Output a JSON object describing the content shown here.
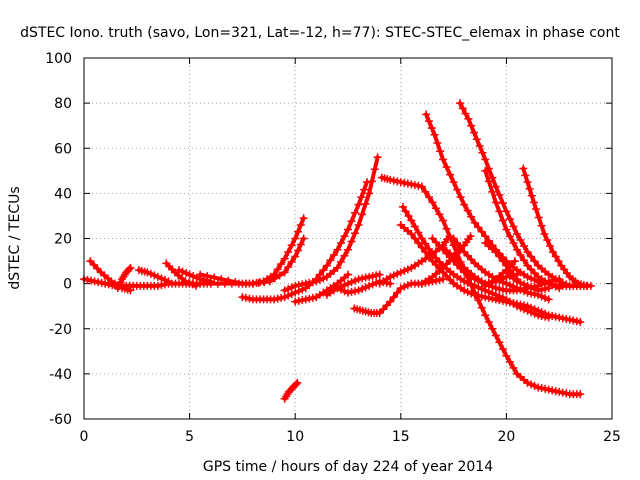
{
  "chart_data": {
    "type": "scatter",
    "title": "dSTEC Iono. truth (savo, Lon=321, Lat=-12, h=77): STEC-STEC_elemax in phase cont",
    "xlabel": "GPS time / hours of day 224 of year 2014",
    "ylabel": "dSTEC / TECUs",
    "xlim": [
      0,
      25
    ],
    "ylim": [
      -60,
      100
    ],
    "xticks": [
      0,
      5,
      10,
      15,
      20,
      25
    ],
    "yticks": [
      -60,
      -40,
      -20,
      0,
      20,
      40,
      60,
      80,
      100
    ],
    "grid": true,
    "marker_color": "#ff0000",
    "series": [
      {
        "x": [
          0.0,
          0.5,
          1.0,
          1.5,
          2.0,
          2.5,
          3.0,
          3.5,
          4.0,
          4.5,
          5.0,
          5.5,
          6.0
        ],
        "y": [
          2,
          1,
          0,
          -1,
          -1,
          -1,
          -1,
          -1,
          0,
          0,
          0,
          0,
          0
        ]
      },
      {
        "x": [
          0.3,
          0.8,
          1.3,
          1.8,
          2.2
        ],
        "y": [
          10,
          5,
          1,
          -2,
          -3
        ]
      },
      {
        "x": [
          1.6,
          1.8,
          2.0,
          2.2
        ],
        "y": [
          -2,
          2,
          5,
          7
        ]
      },
      {
        "x": [
          2.6,
          3.0,
          3.5,
          4.0
        ],
        "y": [
          6,
          5,
          3,
          1
        ]
      },
      {
        "x": [
          3.9,
          4.3,
          4.8,
          5.3
        ],
        "y": [
          9,
          5,
          1,
          -1
        ]
      },
      {
        "x": [
          4.5,
          5.0,
          5.5,
          6.0
        ],
        "y": [
          6,
          4,
          2,
          1
        ]
      },
      {
        "x": [
          5.5,
          6.5,
          7.5,
          8.0,
          8.5,
          9.0,
          9.5,
          10.0,
          10.4
        ],
        "y": [
          4,
          2,
          0,
          0,
          1,
          4,
          11,
          20,
          29
        ]
      },
      {
        "x": [
          6.0,
          7.0,
          8.0,
          8.8,
          9.5,
          10.0,
          10.4
        ],
        "y": [
          0,
          0,
          0,
          1,
          5,
          12,
          20
        ]
      },
      {
        "x": [
          7.5,
          8.0,
          8.5,
          9.0,
          9.5,
          10.0,
          10.5,
          11.0,
          11.5,
          12.0,
          12.5,
          13.0,
          13.4
        ],
        "y": [
          -6,
          -7,
          -7,
          -7,
          -6,
          -4,
          -2,
          2,
          8,
          15,
          24,
          35,
          45
        ]
      },
      {
        "x": [
          9.5,
          10.0,
          10.5,
          11.0,
          11.5,
          12.0,
          12.5,
          13.0,
          13.5,
          13.9
        ],
        "y": [
          -3,
          -1,
          0,
          1,
          3,
          7,
          15,
          26,
          40,
          56
        ]
      },
      {
        "x": [
          10.0,
          10.5,
          11.0,
          11.5,
          12.0,
          12.5
        ],
        "y": [
          -8,
          -7,
          -6,
          -3,
          0,
          4
        ]
      },
      {
        "x": [
          9.5,
          9.7,
          9.9,
          10.1
        ],
        "y": [
          -51,
          -48,
          -46,
          -44
        ]
      },
      {
        "x": [
          11.5,
          12.0,
          12.5,
          13.0,
          13.5,
          14.0
        ],
        "y": [
          -5,
          -2,
          0,
          2,
          3,
          4
        ]
      },
      {
        "x": [
          12.8,
          13.2,
          13.6,
          14.0,
          14.5,
          15.0,
          15.5,
          16.0,
          16.5,
          17.0
        ],
        "y": [
          -11,
          -12,
          -13,
          -13,
          -8,
          -2,
          0,
          0,
          1,
          2
        ]
      },
      {
        "x": [
          12.0,
          12.5,
          13.0,
          13.5,
          14.0,
          14.5
        ],
        "y": [
          -2,
          -4,
          -3,
          -1,
          1,
          0
        ]
      },
      {
        "x": [
          14.0,
          14.5,
          15.0,
          15.5,
          16.0,
          16.5,
          17.0,
          17.3
        ],
        "y": [
          0,
          3,
          5,
          7,
          10,
          13,
          17,
          21
        ]
      },
      {
        "x": [
          14.1,
          14.5,
          15.0,
          15.5,
          16.0,
          16.5,
          17.0,
          17.5,
          18.0,
          18.5,
          19.0,
          19.5,
          20.0,
          20.5,
          21.0,
          21.5,
          22.0,
          22.5,
          23.0,
          23.5
        ],
        "y": [
          47,
          46,
          45,
          44,
          43,
          36,
          28,
          17,
          6,
          -4,
          -14,
          -23,
          -32,
          -40,
          -44,
          -46,
          -47,
          -48,
          -49,
          -49
        ]
      },
      {
        "x": [
          15.1,
          15.5,
          16.0,
          16.5,
          17.0,
          17.5,
          18.0,
          18.5,
          19.0,
          19.5,
          20.0,
          20.5,
          21.0,
          21.5,
          22.0
        ],
        "y": [
          34,
          28,
          20,
          13,
          8,
          4,
          1,
          -1,
          -3,
          -5,
          -7,
          -10,
          -12,
          -14,
          -15
        ]
      },
      {
        "x": [
          15.0,
          15.5,
          16.0,
          16.5,
          17.0,
          17.5,
          18.0,
          18.5,
          19.0,
          19.5,
          20.0,
          20.5,
          21.0,
          21.5,
          22.0,
          22.5,
          23.0,
          23.5
        ],
        "y": [
          26,
          22,
          16,
          10,
          5,
          0,
          -3,
          -5,
          -6,
          -7,
          -8,
          -9,
          -10,
          -12,
          -14,
          -15,
          -16,
          -17
        ]
      },
      {
        "x": [
          16.2,
          16.6,
          17.0,
          17.5,
          18.0,
          18.5,
          19.0,
          19.5,
          20.0,
          20.5,
          21.0,
          21.5,
          22.0,
          22.5,
          23.0,
          23.5,
          24.0
        ],
        "y": [
          75,
          66,
          55,
          45,
          35,
          27,
          21,
          15,
          10,
          6,
          3,
          1,
          0,
          -1,
          -1,
          -1,
          -1
        ]
      },
      {
        "x": [
          17.8,
          18.2,
          18.6,
          19.0,
          19.5,
          20.0,
          20.5,
          21.0,
          21.5,
          22.0,
          22.5,
          23.0,
          23.5
        ],
        "y": [
          80,
          73,
          64,
          55,
          43,
          32,
          22,
          14,
          8,
          4,
          1,
          -1,
          -1
        ]
      },
      {
        "x": [
          19.0,
          19.5,
          20.0,
          20.5,
          21.0,
          21.5,
          22.0,
          22.5
        ],
        "y": [
          50,
          36,
          24,
          15,
          8,
          3,
          0,
          -2
        ]
      },
      {
        "x": [
          20.8,
          21.1,
          21.4,
          21.8,
          22.2,
          22.6,
          23.0,
          23.4,
          23.8
        ],
        "y": [
          51,
          42,
          33,
          22,
          14,
          8,
          3,
          0,
          -1
        ]
      },
      {
        "x": [
          17.5,
          18.0,
          18.5,
          19.0,
          19.5,
          20.0,
          20.5,
          21.0,
          21.5,
          22.0
        ],
        "y": [
          20,
          14,
          9,
          5,
          2,
          0,
          -2,
          -4,
          -5,
          -7
        ]
      },
      {
        "x": [
          16.5,
          17.0,
          17.5,
          18.0,
          18.5,
          19.0,
          19.5,
          20.0,
          20.5
        ],
        "y": [
          20,
          15,
          10,
          5,
          2,
          0,
          1,
          3,
          4
        ]
      },
      {
        "x": [
          16.0,
          16.5,
          17.0,
          17.5,
          18.0,
          18.3
        ],
        "y": [
          0,
          3,
          7,
          12,
          17,
          21
        ]
      },
      {
        "x": [
          19.0,
          19.5,
          20.0,
          20.5
        ],
        "y": [
          18,
          14,
          8,
          2
        ]
      },
      {
        "x": [
          19.0,
          19.5,
          20.0,
          20.4
        ],
        "y": [
          -1,
          2,
          6,
          10
        ]
      },
      {
        "x": [
          20.0,
          20.5,
          21.0,
          21.5,
          22.0
        ],
        "y": [
          5,
          1,
          -1,
          -3,
          -2
        ]
      },
      {
        "x": [
          17.0,
          17.5,
          18.0,
          18.5,
          19.0,
          19.5,
          20.0,
          20.5,
          21.0,
          21.5,
          22.0,
          22.5
        ],
        "y": [
          16,
          12,
          7,
          3,
          0,
          -2,
          -3,
          -3,
          -2,
          -1,
          1,
          2
        ]
      }
    ]
  }
}
